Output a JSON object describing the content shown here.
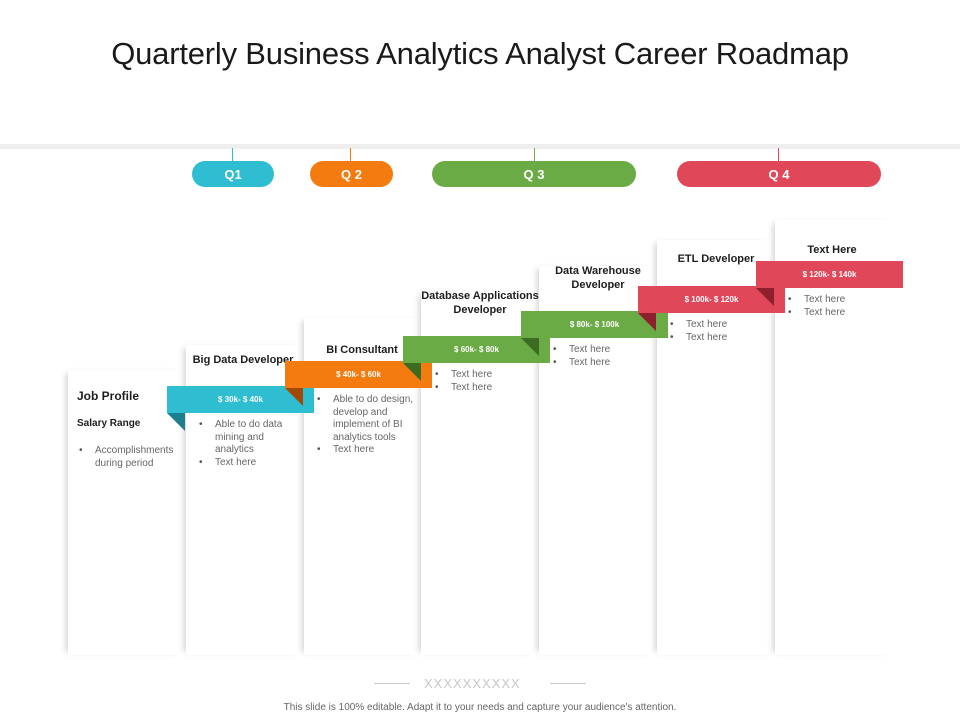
{
  "title": "Quarterly Business Analytics Analyst Career Roadmap",
  "quarters": [
    {
      "label": "Q1",
      "color": "#2ebdd1"
    },
    {
      "label": "Q 2",
      "color": "#f47b10"
    },
    {
      "label": "Q 3",
      "color": "#6aab45"
    },
    {
      "label": "Q 4",
      "color": "#e0485a"
    }
  ],
  "legend": {
    "job_profile": "Job Profile",
    "salary_range": "Salary Range",
    "accomplishments": [
      "Accomplishments during period"
    ]
  },
  "steps": [
    {
      "role": "Big Data Developer",
      "salary": "$ 30k- $ 40k",
      "color": "#2ebdd1",
      "fold_color": "#1b7f8e",
      "bullets": [
        "Able to do data mining and analytics",
        "Text here"
      ]
    },
    {
      "role": "BI Consultant",
      "salary": "$ 40k- $ 60k",
      "color": "#f47b10",
      "fold_color": "#a04a05",
      "bullets": [
        "Able to do design, develop and implement of BI analytics tools",
        "Text here"
      ]
    },
    {
      "role": "Database Applications Developer",
      "salary": "$ 60k- $ 80k",
      "color": "#6aab45",
      "fold_color": "#3b6c22",
      "bullets": [
        "Text here",
        "Text here"
      ]
    },
    {
      "role": "Data Warehouse Developer",
      "salary": "$ 80k- $ 100k",
      "color": "#6aab45",
      "fold_color": "#3b6c22",
      "bullets": [
        "Text here",
        "Text here"
      ]
    },
    {
      "role": "ETL Developer",
      "salary": "$ 100k- $ 120k",
      "color": "#e0485a",
      "fold_color": "#8e1f2d",
      "bullets": [
        "Text here",
        "Text here"
      ]
    },
    {
      "role": "Text Here",
      "salary": "$ 120k- $ 140k",
      "color": "#e0485a",
      "fold_color": "#8e1f2d",
      "bullets": [
        "Text here",
        "Text here"
      ]
    }
  ],
  "separator_text": "XXXXXXXXXX",
  "footer": "This slide is 100% editable. Adapt it to your needs and capture your audience's attention."
}
